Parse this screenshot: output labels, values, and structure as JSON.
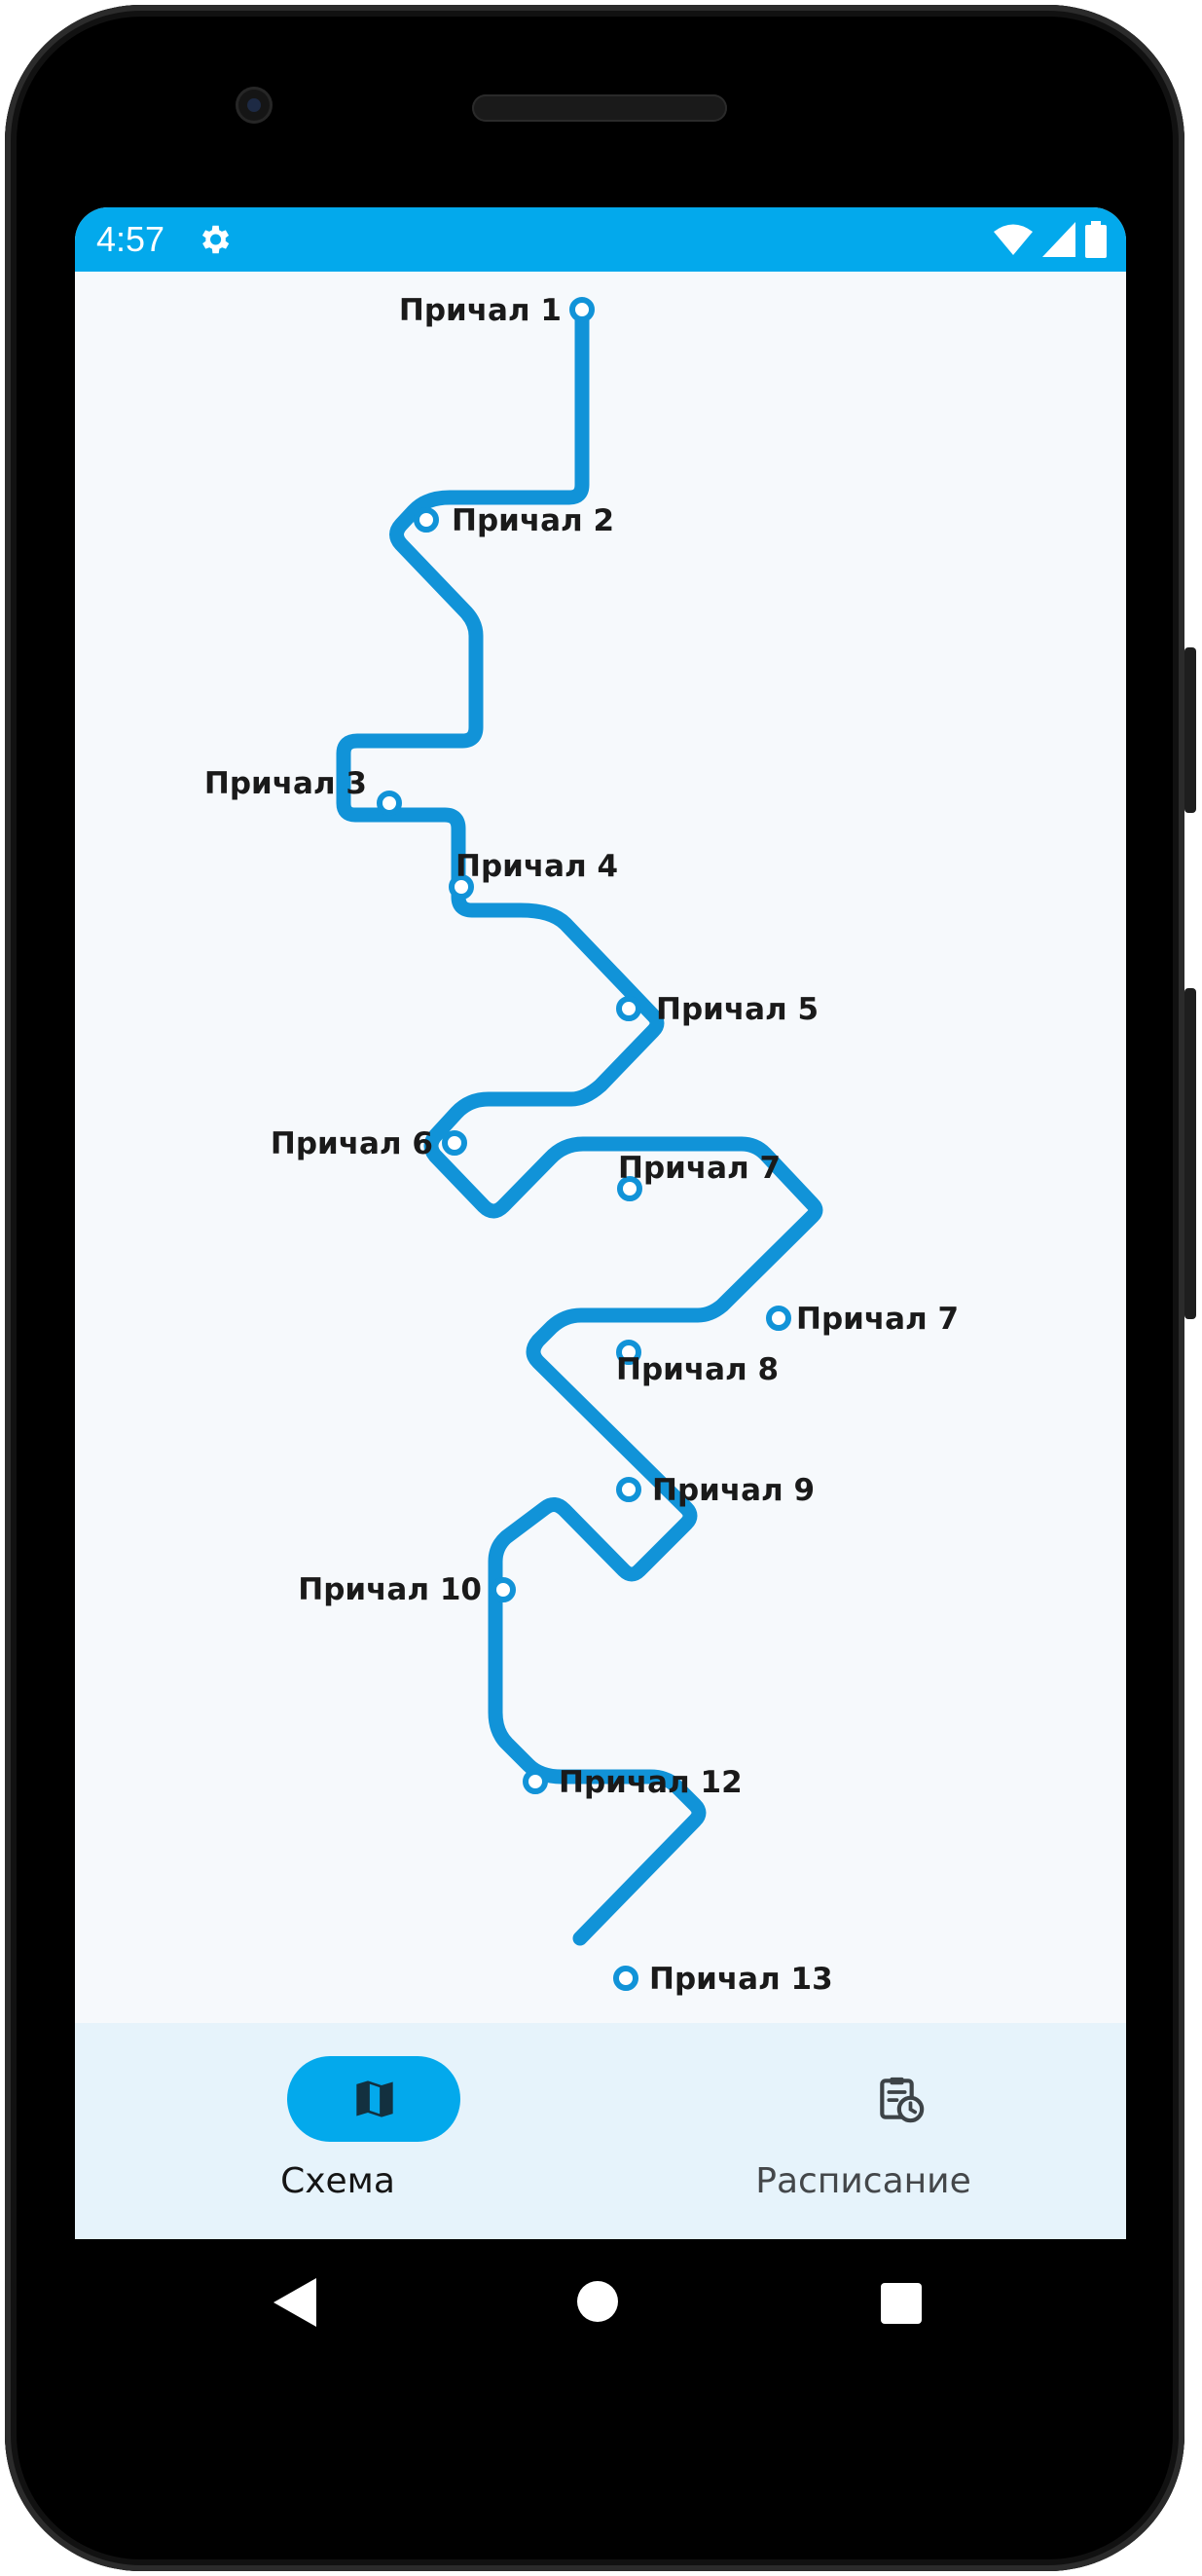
{
  "status_bar": {
    "time": "4:57",
    "icons": [
      "gear-icon",
      "wifi-icon",
      "signal-icon",
      "battery-icon"
    ],
    "background": "#03a9ec"
  },
  "route_map": {
    "line_color": "#1193d8",
    "piers": [
      {
        "label": "Причал 1"
      },
      {
        "label": "Причал 2"
      },
      {
        "label": "Причал 3"
      },
      {
        "label": "Причал 4"
      },
      {
        "label": "Причал 5"
      },
      {
        "label": "Причал 6"
      },
      {
        "label": "Причал 7"
      },
      {
        "label": "Причал 7"
      },
      {
        "label": "Причал 8"
      },
      {
        "label": "Причал 9"
      },
      {
        "label": "Причал 10"
      },
      {
        "label": "Причал 12"
      },
      {
        "label": "Причал 13"
      }
    ]
  },
  "bottom_nav": {
    "items": [
      {
        "label": "Схема",
        "icon": "map-icon",
        "active": true
      },
      {
        "label": "Расписание",
        "icon": "schedule-icon",
        "active": false
      }
    ]
  },
  "system_nav": {
    "icons": [
      "back-icon",
      "home-icon",
      "recents-icon"
    ]
  }
}
